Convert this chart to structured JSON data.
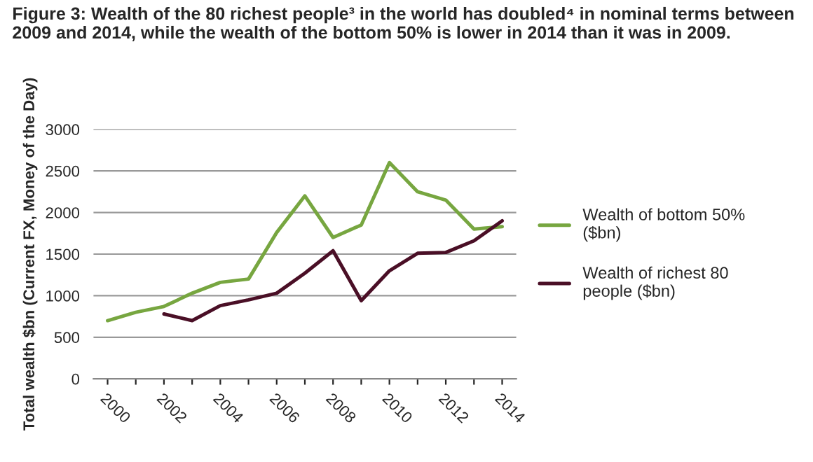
{
  "chart_data": {
    "type": "line",
    "title": "Figure 3: Wealth of the 80 richest people³ in the world has doubled⁴ in nominal terms between 2009 and 2014, while the wealth of the bottom 50% is lower in 2014 than it was in 2009.",
    "ylabel": "Total wealth $bn (Current FX, Money of the Day)",
    "categories": [
      "2000",
      null,
      "2002",
      null,
      "2004",
      null,
      "2006",
      null,
      "2008",
      null,
      "2010",
      null,
      "2012",
      null,
      "2014"
    ],
    "series": [
      {
        "name": "Wealth of bottom 50% ($bn)",
        "color": "#77a640",
        "values": [
          700,
          800,
          870,
          1030,
          1160,
          1200,
          1760,
          2200,
          1700,
          1850,
          2600,
          2250,
          2150,
          1800,
          1830
        ]
      },
      {
        "name": "Wealth of richest 80 people ($bn)",
        "color": "#4a0f26",
        "values": [
          null,
          null,
          780,
          700,
          880,
          950,
          1030,
          1270,
          1540,
          940,
          1300,
          1510,
          1520,
          1660,
          1900
        ]
      }
    ],
    "ylim": [
      0,
      3000
    ],
    "yticks": [
      0,
      500,
      1000,
      1500,
      2000,
      2500,
      3000
    ],
    "grid": "y",
    "legend": "right",
    "marker": "none",
    "line_style": "solid"
  }
}
